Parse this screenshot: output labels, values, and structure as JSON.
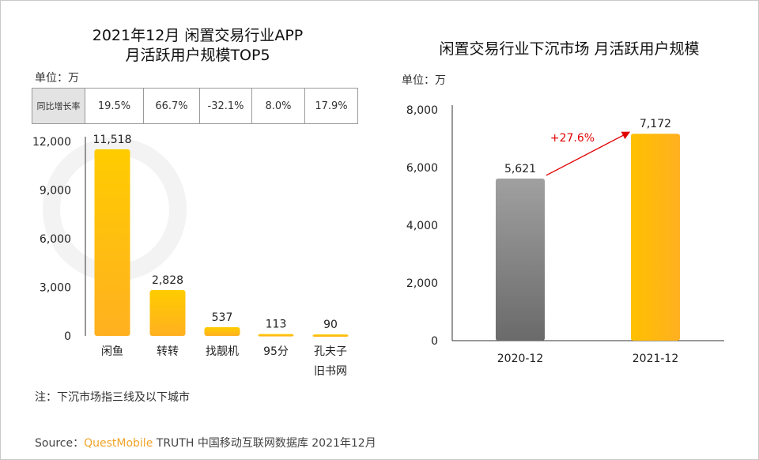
{
  "watermark": "QUEST MOBILE",
  "left": {
    "title_line1": "2021年12月 闲置交易行业APP",
    "title_line2": "月活跃用户规模TOP5",
    "unit": "单位：万",
    "yoy_header": "同比增长率",
    "yoy": [
      "19.5%",
      "66.7%",
      "-32.1%",
      "8.0%",
      "17.9%"
    ]
  },
  "right": {
    "title": "闲置交易行业下沉市场 月活跃用户规模",
    "unit": "单位：万"
  },
  "note": "注：下沉市场指三线及以下城市",
  "source": {
    "prefix": "Source：",
    "brand": "QuestMobile",
    "rest": " TRUTH 中国移动互联网数据库 2021年12月"
  },
  "colors": {
    "bar_yellow": "#ffc000",
    "bar_gray": "#808080",
    "arrow": "#e00000",
    "brand": "#f0a52a"
  },
  "chart_data": [
    {
      "type": "bar",
      "categories": [
        "闲鱼",
        "转转",
        "找靓机",
        "95分",
        "孔夫子\n旧书网"
      ],
      "category_lines": [
        [
          "闲鱼"
        ],
        [
          "转转"
        ],
        [
          "找靓机"
        ],
        [
          "95分"
        ],
        [
          "孔夫子",
          "旧书网"
        ]
      ],
      "values": [
        11518,
        2828,
        537,
        113,
        90
      ],
      "data_labels": [
        "11,518",
        "2,828",
        "537",
        "113",
        "90"
      ],
      "ylim": [
        0,
        12000
      ],
      "yticks": [
        "0",
        "3,000",
        "6,000",
        "9,000",
        "12,000"
      ],
      "grid": false
    },
    {
      "type": "bar",
      "categories": [
        "2020-12",
        "2021-12"
      ],
      "values": [
        5621,
        7172
      ],
      "data_labels": [
        "5,621",
        "7,172"
      ],
      "ylim": [
        0,
        8000
      ],
      "yticks": [
        "0",
        "2,000",
        "4,000",
        "6,000",
        "8,000"
      ],
      "annotation": "+27.6%",
      "grid": false
    }
  ]
}
